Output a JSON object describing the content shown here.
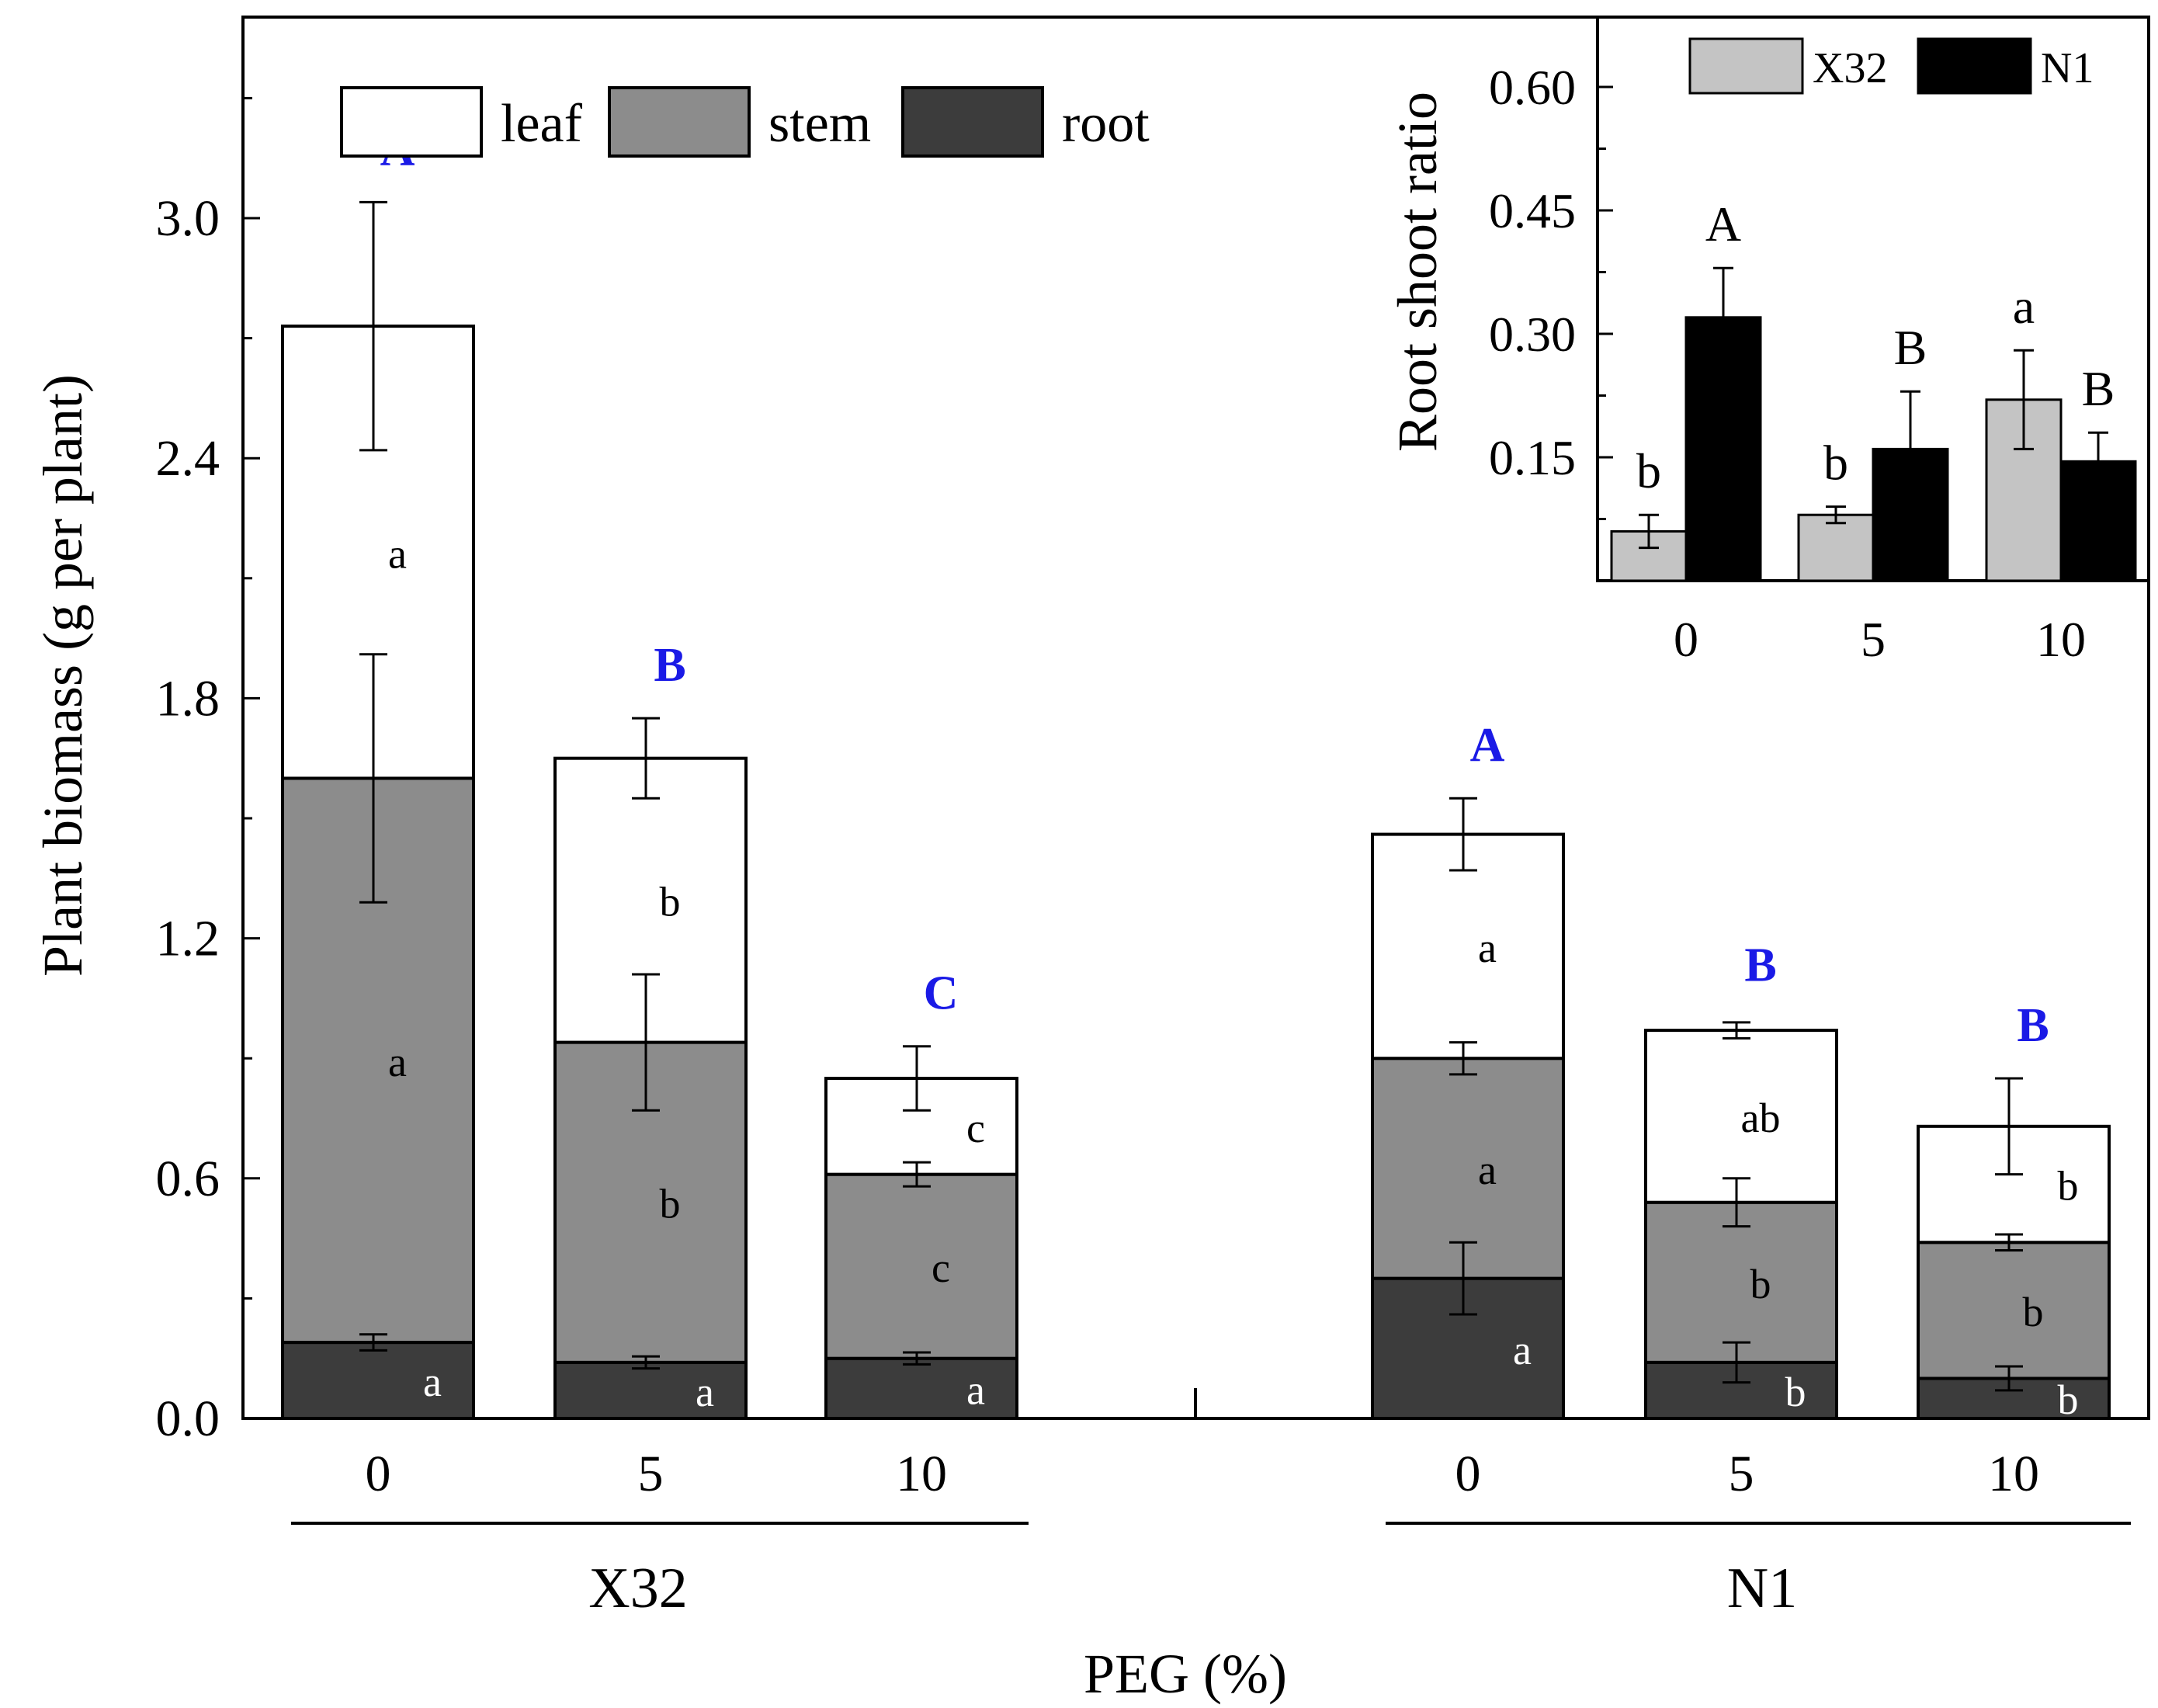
{
  "chart_data": [
    {
      "type": "bar",
      "stacked": true,
      "ylabel": "Plant biomass (g per plant)",
      "xlabel": "PEG (%)",
      "ylim": [
        0,
        3.4
      ],
      "yticks": [
        0.0,
        0.6,
        1.2,
        1.8,
        2.4,
        3.0
      ],
      "ytick_labels": [
        "0.0",
        "0.6",
        "1.2",
        "1.8",
        "2.4",
        "3.0"
      ],
      "groups": [
        "X32",
        "N1"
      ],
      "categories": [
        "0",
        "5",
        "10"
      ],
      "legend": {
        "position": "top-left",
        "entries": [
          "leaf",
          "stem",
          "root"
        ]
      },
      "colors": {
        "leaf": "#ffffff",
        "stem": "#8c8c8c",
        "root": "#3c3c3c"
      },
      "series": [
        {
          "name": "root",
          "values": {
            "X32": [
              0.19,
              0.14,
              0.15
            ],
            "N1": [
              0.35,
              0.14,
              0.1
            ]
          },
          "errors": {
            "X32": [
              0.02,
              0.015,
              0.015
            ],
            "N1": [
              0.09,
              0.05,
              0.03
            ]
          },
          "letters": {
            "X32": [
              "a",
              "a",
              "a"
            ],
            "N1": [
              "a",
              "b",
              "b"
            ]
          }
        },
        {
          "name": "stem",
          "values": {
            "X32": [
              1.41,
              0.8,
              0.46
            ],
            "N1": [
              0.55,
              0.4,
              0.34
            ]
          },
          "errors": {
            "X32": [
              0.31,
              0.17,
              0.03
            ],
            "N1": [
              0.04,
              0.06,
              0.02
            ]
          },
          "letters": {
            "X32": [
              "a",
              "b",
              "c"
            ],
            "N1": [
              "a",
              "b",
              "b"
            ]
          }
        },
        {
          "name": "leaf",
          "values": {
            "X32": [
              1.13,
              0.71,
              0.24
            ],
            "N1": [
              0.56,
              0.43,
              0.29
            ]
          },
          "errors": {
            "X32": [
              0.31,
              0.1,
              0.08
            ],
            "N1": [
              0.09,
              0.02,
              0.12
            ]
          },
          "letters": {
            "X32": [
              "a",
              "b",
              "c"
            ],
            "N1": [
              "a",
              "ab",
              "b"
            ]
          }
        }
      ],
      "totals": {
        "X32": [
          2.73,
          1.65,
          0.85
        ],
        "N1": [
          1.46,
          0.98,
          0.73
        ]
      },
      "total_letters": {
        "X32": [
          "A",
          "B",
          "C"
        ],
        "N1": [
          "A",
          "B",
          "B"
        ]
      }
    },
    {
      "type": "bar",
      "inset": true,
      "position": "top-right",
      "ylabel": "Root shoot ratio",
      "ylim": [
        0.0,
        0.65
      ],
      "yticks": [
        0.15,
        0.3,
        0.45,
        0.6
      ],
      "ytick_labels": [
        "0.15",
        "0.30",
        "0.45",
        "0.60"
      ],
      "categories": [
        "0",
        "5",
        "10"
      ],
      "legend": {
        "position": "top",
        "entries": [
          "X32",
          "N1"
        ]
      },
      "series": [
        {
          "name": "X32",
          "color": "#c4c4c4",
          "values": [
            0.06,
            0.08,
            0.22
          ],
          "errors": [
            0.02,
            0.01,
            0.06
          ],
          "letters": [
            "b",
            "b",
            "a"
          ]
        },
        {
          "name": "N1",
          "color": "#000000",
          "values": [
            0.32,
            0.16,
            0.145
          ],
          "errors": [
            0.06,
            0.07,
            0.035
          ],
          "letters": [
            "A",
            "B",
            "B"
          ]
        }
      ]
    }
  ]
}
